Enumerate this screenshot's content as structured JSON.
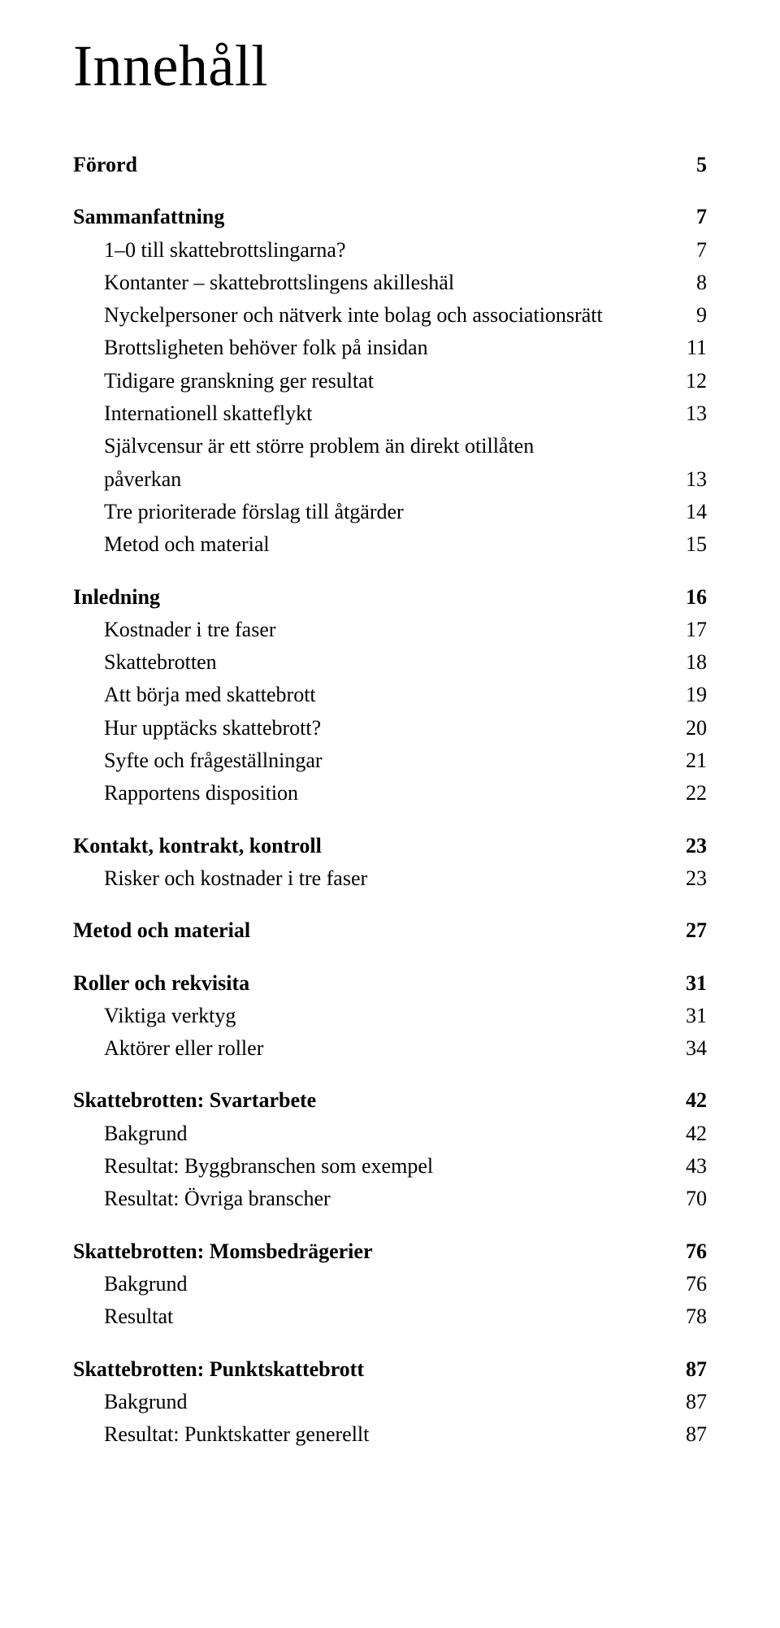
{
  "title": "Innehåll",
  "typography": {
    "title_fontsize_pt": 54,
    "body_fontsize_pt": 20,
    "font_family": "Garamond/serif",
    "text_color": "#000000",
    "background_color": "#ffffff"
  },
  "toc": [
    {
      "label": "Förord",
      "page": "5",
      "bold": true,
      "indent": 0
    },
    {
      "label": "Sammanfattning",
      "page": "7",
      "bold": true,
      "indent": 0
    },
    {
      "label": "1–0 till skattebrottslingarna?",
      "page": "7",
      "bold": false,
      "indent": 1
    },
    {
      "label": "Kontanter – skattebrottslingens akilleshäl",
      "page": "8",
      "bold": false,
      "indent": 1
    },
    {
      "label": "Nyckelpersoner och nätverk inte bolag och associationsrätt",
      "page": "9",
      "bold": false,
      "indent": 1
    },
    {
      "label": "Brottsligheten behöver folk på insidan",
      "page": "11",
      "bold": false,
      "indent": 1
    },
    {
      "label": "Tidigare granskning ger resultat",
      "page": "12",
      "bold": false,
      "indent": 1
    },
    {
      "label": "Internationell skatteflykt",
      "page": "13",
      "bold": false,
      "indent": 1
    },
    {
      "label": "Självcensur är ett större problem än direkt otillåten",
      "label_cont": "påverkan",
      "page": "13",
      "bold": false,
      "indent": 1
    },
    {
      "label": "Tre prioriterade förslag till åtgärder",
      "page": "14",
      "bold": false,
      "indent": 1
    },
    {
      "label": "Metod och material",
      "page": "15",
      "bold": false,
      "indent": 1
    },
    {
      "label": "Inledning",
      "page": "16",
      "bold": true,
      "indent": 0
    },
    {
      "label": "Kostnader i tre faser",
      "page": "17",
      "bold": false,
      "indent": 1
    },
    {
      "label": "Skattebrotten",
      "page": "18",
      "bold": false,
      "indent": 1
    },
    {
      "label": "Att börja med skattebrott",
      "page": "19",
      "bold": false,
      "indent": 1
    },
    {
      "label": "Hur upptäcks skattebrott?",
      "page": "20",
      "bold": false,
      "indent": 1
    },
    {
      "label": "Syfte och frågeställningar",
      "page": "21",
      "bold": false,
      "indent": 1
    },
    {
      "label": "Rapportens disposition",
      "page": "22",
      "bold": false,
      "indent": 1
    },
    {
      "label": "Kontakt, kontrakt, kontroll",
      "page": "23",
      "bold": true,
      "indent": 0
    },
    {
      "label": "Risker och kostnader i tre faser",
      "page": "23",
      "bold": false,
      "indent": 1
    },
    {
      "label": "Metod och material",
      "page": "27",
      "bold": true,
      "indent": 0
    },
    {
      "label": "Roller och rekvisita",
      "page": "31",
      "bold": true,
      "indent": 0
    },
    {
      "label": "Viktiga verktyg",
      "page": "31",
      "bold": false,
      "indent": 1
    },
    {
      "label": "Aktörer eller roller",
      "page": "34",
      "bold": false,
      "indent": 1
    },
    {
      "label": "Skattebrotten: Svartarbete",
      "page": "42",
      "bold": true,
      "indent": 0
    },
    {
      "label": "Bakgrund",
      "page": "42",
      "bold": false,
      "indent": 1
    },
    {
      "label": "Resultat: Byggbranschen som exempel",
      "page": "43",
      "bold": false,
      "indent": 1
    },
    {
      "label": "Resultat: Övriga branscher",
      "page": "70",
      "bold": false,
      "indent": 1
    },
    {
      "label": "Skattebrotten: Momsbedrägerier",
      "page": "76",
      "bold": true,
      "indent": 0
    },
    {
      "label": "Bakgrund",
      "page": "76",
      "bold": false,
      "indent": 1
    },
    {
      "label": "Resultat",
      "page": "78",
      "bold": false,
      "indent": 1
    },
    {
      "label": "Skattebrotten: Punktskattebrott",
      "page": "87",
      "bold": true,
      "indent": 0
    },
    {
      "label": "Bakgrund",
      "page": "87",
      "bold": false,
      "indent": 1
    },
    {
      "label": "Resultat: Punktskatter generellt",
      "page": "87",
      "bold": false,
      "indent": 1
    }
  ]
}
